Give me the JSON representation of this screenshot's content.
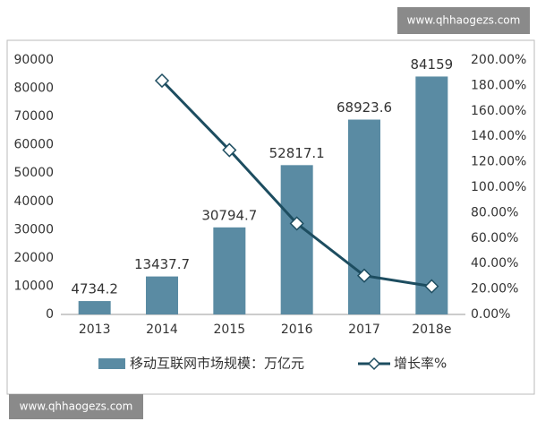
{
  "watermarks": [
    "www.qhhaogezs.com",
    "www.qhhaogezs.com"
  ],
  "chart_data": {
    "type": "bar-line",
    "categories": [
      "2013",
      "2014",
      "2015",
      "2016",
      "2017",
      "2018e"
    ],
    "series": [
      {
        "name": "移动互联网市场规模：万亿元",
        "type": "bar",
        "color": "#5a8ba3",
        "values": [
          4734.2,
          13437.7,
          30794.7,
          52817.1,
          68923.6,
          84159
        ]
      },
      {
        "name": "增长率%",
        "type": "line",
        "axis": "y2",
        "color": "#1d4d60",
        "values": [
          null,
          183.8,
          129.2,
          71.5,
          30.5,
          22.1
        ]
      }
    ],
    "ylim": [
      0,
      90000
    ],
    "yticks": [
      0,
      10000,
      20000,
      30000,
      40000,
      50000,
      60000,
      70000,
      80000,
      90000
    ],
    "y2lim": [
      0,
      200
    ],
    "y2ticks": [
      {
        "value": 0,
        "label": "0.00%"
      },
      {
        "value": 20,
        "label": "20.00%"
      },
      {
        "value": 40,
        "label": "40.00%"
      },
      {
        "value": 60,
        "label": "60.00%"
      },
      {
        "value": 80,
        "label": "80.00%"
      },
      {
        "value": 100,
        "label": "100.00%"
      },
      {
        "value": 120,
        "label": "120.00%"
      },
      {
        "value": 140,
        "label": "140.00%"
      },
      {
        "value": 160,
        "label": "160.00%"
      },
      {
        "value": 180,
        "label": "180.00%"
      },
      {
        "value": 200,
        "label": "200.00%"
      }
    ],
    "grid": false,
    "legend": "bottom"
  }
}
